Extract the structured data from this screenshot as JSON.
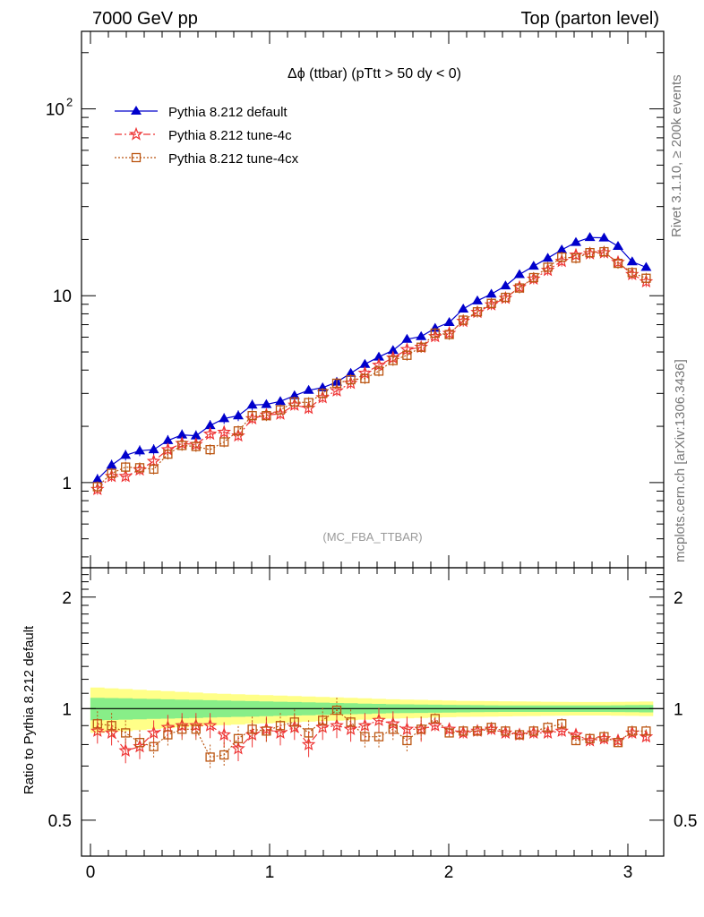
{
  "header": {
    "left": "7000 GeV pp",
    "right": "Top (parton level)"
  },
  "side": {
    "rivet": "Rivet 3.1.10, ≥ 200k events",
    "mcplots": "mcplots.cern.ch [arXiv:1306.3436]"
  },
  "colors": {
    "default": "#0000cc",
    "tune4c": "#ee3333",
    "tune4cx": "#bb5511",
    "band_outer": "#ffff88",
    "band_inner": "#88ee88"
  },
  "chart_data": {
    "type": "line",
    "title": "Δϕ (ttbar) (pTtt > 50 dy < 0)",
    "analysis_label": "(MC_FBA_TTBAR)",
    "ylabel_ratio": "Ratio to Pythia 8.212 default",
    "x_ticks": [
      "0",
      "1",
      "2",
      "3"
    ],
    "y_ticks_main": [
      "1",
      "10",
      "10^2"
    ],
    "y_ticks_ratio": [
      "0.5",
      "1",
      "2"
    ],
    "xlim": [
      -0.05,
      3.2
    ],
    "ylim_main": [
      0.35,
      260
    ],
    "ylim_ratio": [
      0.4,
      2.4
    ],
    "log_y": true,
    "legend_position": "top-left",
    "x": [
      0.039,
      0.118,
      0.196,
      0.275,
      0.353,
      0.432,
      0.511,
      0.589,
      0.668,
      0.746,
      0.825,
      0.903,
      0.982,
      1.06,
      1.139,
      1.218,
      1.296,
      1.375,
      1.453,
      1.532,
      1.61,
      1.689,
      1.767,
      1.846,
      1.924,
      2.003,
      2.081,
      2.16,
      2.238,
      2.317,
      2.395,
      2.474,
      2.553,
      2.631,
      2.71,
      2.788,
      2.867,
      2.945,
      3.024,
      3.102
    ],
    "series": [
      {
        "name": "Pythia 8.212 default",
        "marker": "triangle",
        "values": [
          1.04,
          1.24,
          1.4,
          1.48,
          1.5,
          1.68,
          1.8,
          1.78,
          2.02,
          2.2,
          2.28,
          2.6,
          2.62,
          2.72,
          2.92,
          3.12,
          3.22,
          3.45,
          3.85,
          4.3,
          4.7,
          5.1,
          5.85,
          6.05,
          6.7,
          7.2,
          8.5,
          9.4,
          10.2,
          11.3,
          13.0,
          14.4,
          15.9,
          17.6,
          19.3,
          20.5,
          20.4,
          18.4,
          15.2,
          14.2
        ]
      },
      {
        "name": "Pythia 8.212 tune-4c",
        "marker": "star",
        "values": [
          0.92,
          1.08,
          1.08,
          1.17,
          1.3,
          1.5,
          1.62,
          1.6,
          1.82,
          1.86,
          1.78,
          2.2,
          2.3,
          2.33,
          2.6,
          2.5,
          2.85,
          3.1,
          3.4,
          3.85,
          4.25,
          4.65,
          5.15,
          5.3,
          6.05,
          6.3,
          7.3,
          8.15,
          8.95,
          9.7,
          11.1,
          12.3,
          13.7,
          15.3,
          16.5,
          16.8,
          17.0,
          15.1,
          13.0,
          11.9
        ]
      },
      {
        "name": "Pythia 8.212 tune-4cx",
        "marker": "square",
        "values": [
          0.95,
          1.12,
          1.21,
          1.2,
          1.18,
          1.42,
          1.58,
          1.56,
          1.5,
          1.65,
          1.89,
          2.28,
          2.28,
          2.45,
          2.7,
          2.68,
          3.0,
          3.4,
          3.55,
          3.6,
          3.95,
          4.5,
          4.8,
          5.3,
          6.3,
          6.2,
          7.4,
          8.2,
          9.1,
          9.8,
          11.0,
          12.5,
          14.2,
          16.1,
          15.9,
          17.0,
          17.2,
          14.9,
          13.3,
          12.4
        ]
      }
    ],
    "ratio_series": [
      {
        "name": "Pythia 8.212 tune-4c",
        "values": [
          0.87,
          0.86,
          0.77,
          0.79,
          0.86,
          0.89,
          0.9,
          0.9,
          0.9,
          0.85,
          0.78,
          0.85,
          0.88,
          0.86,
          0.89,
          0.8,
          0.89,
          0.9,
          0.88,
          0.9,
          0.93,
          0.91,
          0.88,
          0.88,
          0.9,
          0.88,
          0.86,
          0.87,
          0.88,
          0.86,
          0.85,
          0.86,
          0.86,
          0.87,
          0.85,
          0.82,
          0.83,
          0.82,
          0.86,
          0.84
        ]
      },
      {
        "name": "Pythia 8.212 tune-4cx",
        "values": [
          0.91,
          0.9,
          0.86,
          0.81,
          0.79,
          0.85,
          0.88,
          0.88,
          0.74,
          0.75,
          0.83,
          0.88,
          0.87,
          0.9,
          0.92,
          0.86,
          0.93,
          0.99,
          0.92,
          0.84,
          0.84,
          0.88,
          0.82,
          0.88,
          0.94,
          0.86,
          0.87,
          0.87,
          0.89,
          0.87,
          0.85,
          0.87,
          0.89,
          0.91,
          0.82,
          0.83,
          0.84,
          0.81,
          0.87,
          0.87
        ]
      }
    ],
    "ratio_band": {
      "outer_half_width": [
        0.14,
        0.135,
        0.13,
        0.125,
        0.12,
        0.115,
        0.11,
        0.105,
        0.1,
        0.097,
        0.094,
        0.09,
        0.087,
        0.084,
        0.081,
        0.078,
        0.075,
        0.072,
        0.069,
        0.066,
        0.063,
        0.06,
        0.058,
        0.056,
        0.054,
        0.052,
        0.05,
        0.049,
        0.048,
        0.047,
        0.046,
        0.045,
        0.044,
        0.043,
        0.042,
        0.042,
        0.042,
        0.043,
        0.044,
        0.045
      ],
      "inner_half_width": [
        0.07,
        0.068,
        0.066,
        0.064,
        0.062,
        0.06,
        0.058,
        0.056,
        0.054,
        0.052,
        0.05,
        0.048,
        0.046,
        0.044,
        0.042,
        0.04,
        0.038,
        0.036,
        0.034,
        0.032,
        0.03,
        0.028,
        0.027,
        0.026,
        0.025,
        0.024,
        0.023,
        0.022,
        0.021,
        0.02,
        0.02,
        0.02,
        0.02,
        0.02,
        0.02,
        0.02,
        0.02,
        0.021,
        0.022,
        0.023
      ]
    }
  }
}
